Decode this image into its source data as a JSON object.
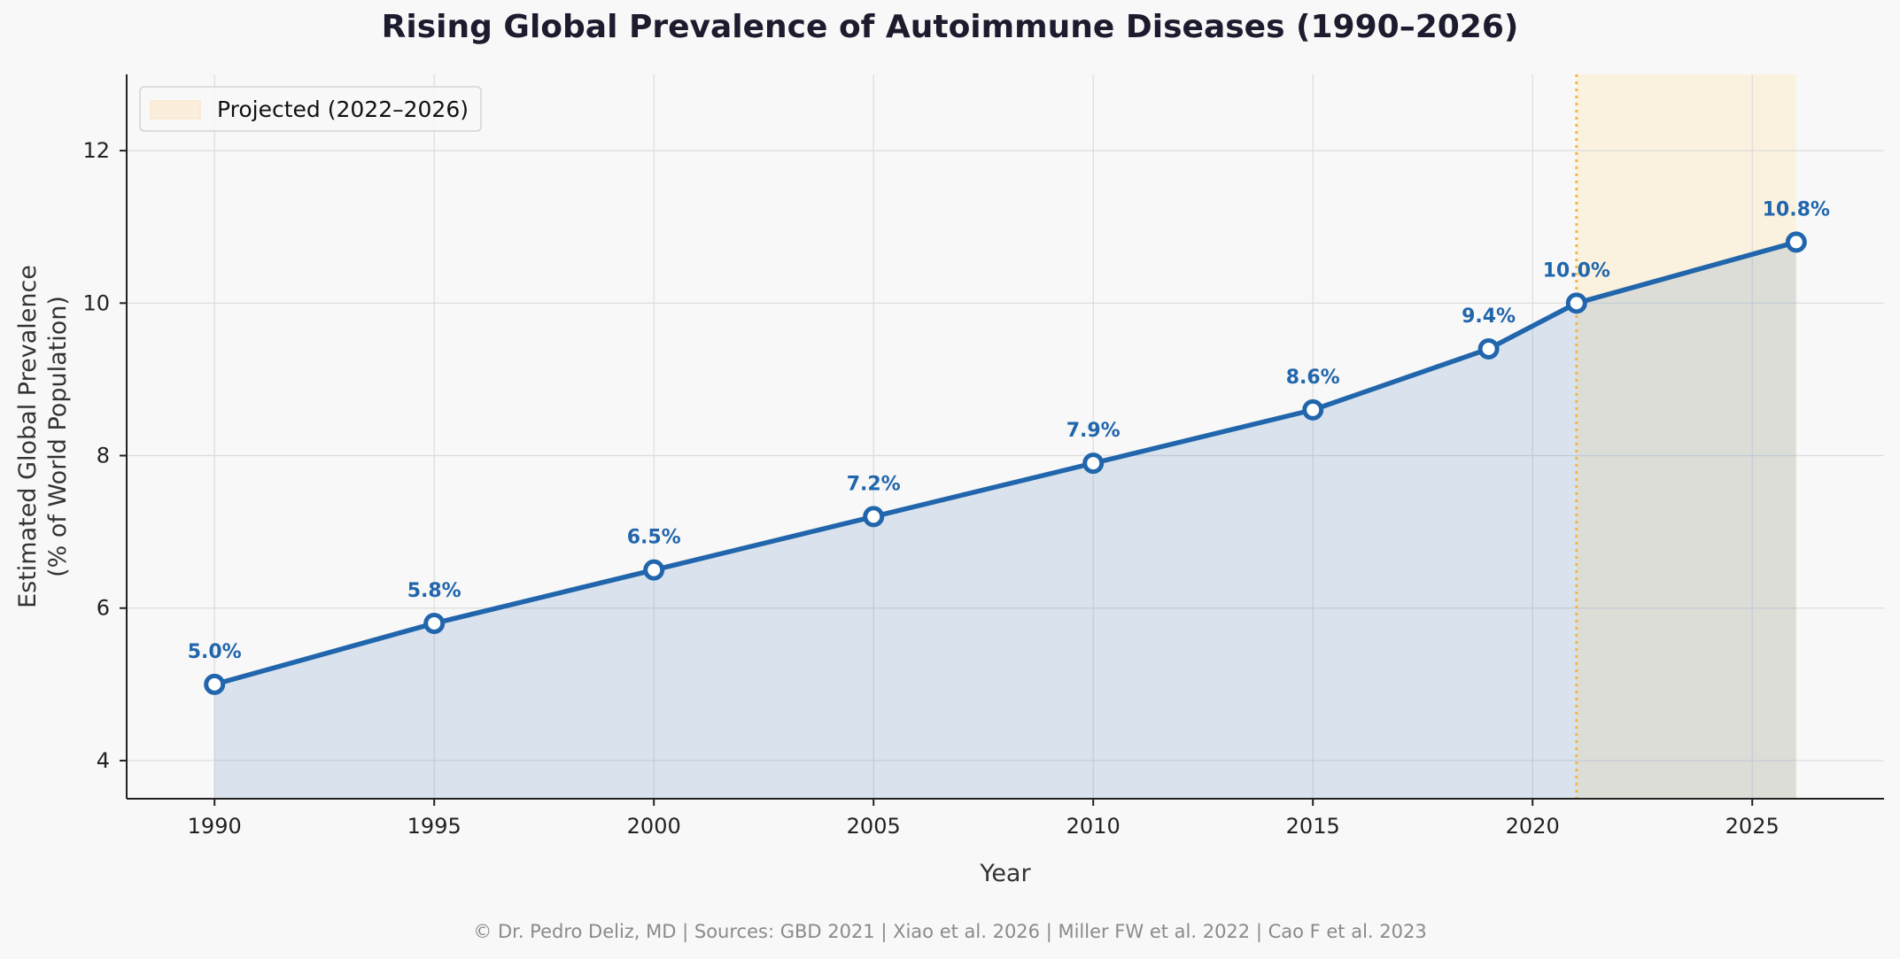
{
  "page": {
    "title": "Rising Global Prevalence of Autoimmune Diseases (1990–2026)",
    "footer": "© Dr. Pedro Deliz, MD | Sources: GBD 2021 | Xiao et al. 2026 | Miller FW et al. 2022 | Cao F et al. 2023"
  },
  "chart_data": {
    "type": "line",
    "title": "Rising Global Prevalence of Autoimmune Diseases (1990–2026)",
    "xlabel": "Year",
    "ylabel_lines": [
      "Estimated Global Prevalence",
      "(% of World Population)"
    ],
    "xlim": [
      1988,
      2028
    ],
    "ylim": [
      3.5,
      13
    ],
    "x_ticks": [
      1990,
      1995,
      2000,
      2005,
      2010,
      2015,
      2020,
      2025
    ],
    "y_ticks": [
      4,
      6,
      8,
      10,
      12
    ],
    "grid": true,
    "area_fill": true,
    "series": [
      {
        "x": [
          1990,
          1995,
          2000,
          2005,
          2010,
          2015,
          2019,
          2021,
          2026
        ],
        "values": [
          5.0,
          5.8,
          6.5,
          7.2,
          7.9,
          8.6,
          9.4,
          10.0,
          10.8
        ],
        "labels": [
          "5.0%",
          "5.8%",
          "6.5%",
          "7.2%",
          "7.9%",
          "8.6%",
          "9.4%",
          "10.0%",
          "10.8%"
        ]
      }
    ],
    "projected_region": {
      "label": "Projected (2022–2026)",
      "x_start": 2021,
      "x_end": 2026
    },
    "legend_placement": "top-left",
    "colors": {
      "line": "#2166ac",
      "area": "#d6e3ee",
      "projected_fill": "#fbefdc",
      "projected_line": "#f5b642",
      "grid": "#dcdcdc",
      "axis": "#222222"
    }
  }
}
